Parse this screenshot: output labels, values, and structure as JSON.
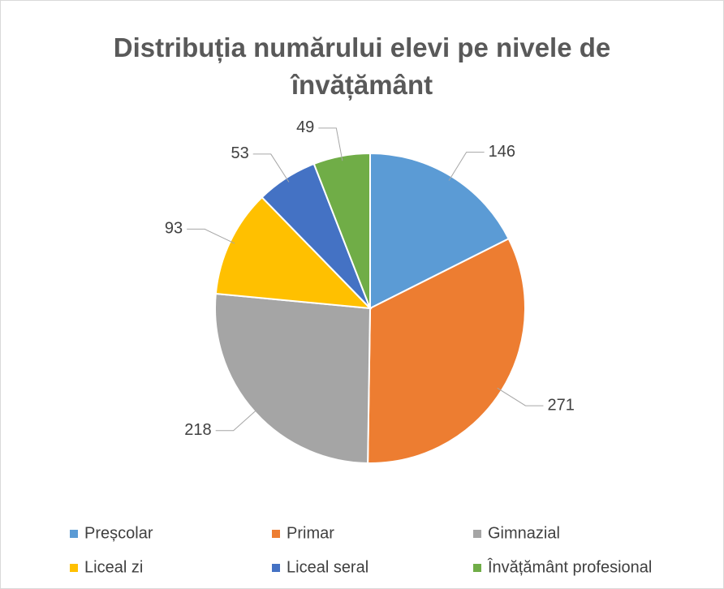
{
  "chart_data": {
    "type": "pie",
    "title": "Distribuția numărului elevi pe nivele de învățământ",
    "categories": [
      "Preșcolar",
      "Primar",
      "Gimnazial",
      "Liceal zi",
      "Liceal seral",
      "Învățământ profesional"
    ],
    "values": [
      146,
      271,
      218,
      93,
      53,
      49
    ],
    "colors": [
      "#5b9bd5",
      "#ed7d31",
      "#a5a5a5",
      "#ffc000",
      "#4472c4",
      "#70ad47"
    ],
    "legend": "bottom"
  }
}
